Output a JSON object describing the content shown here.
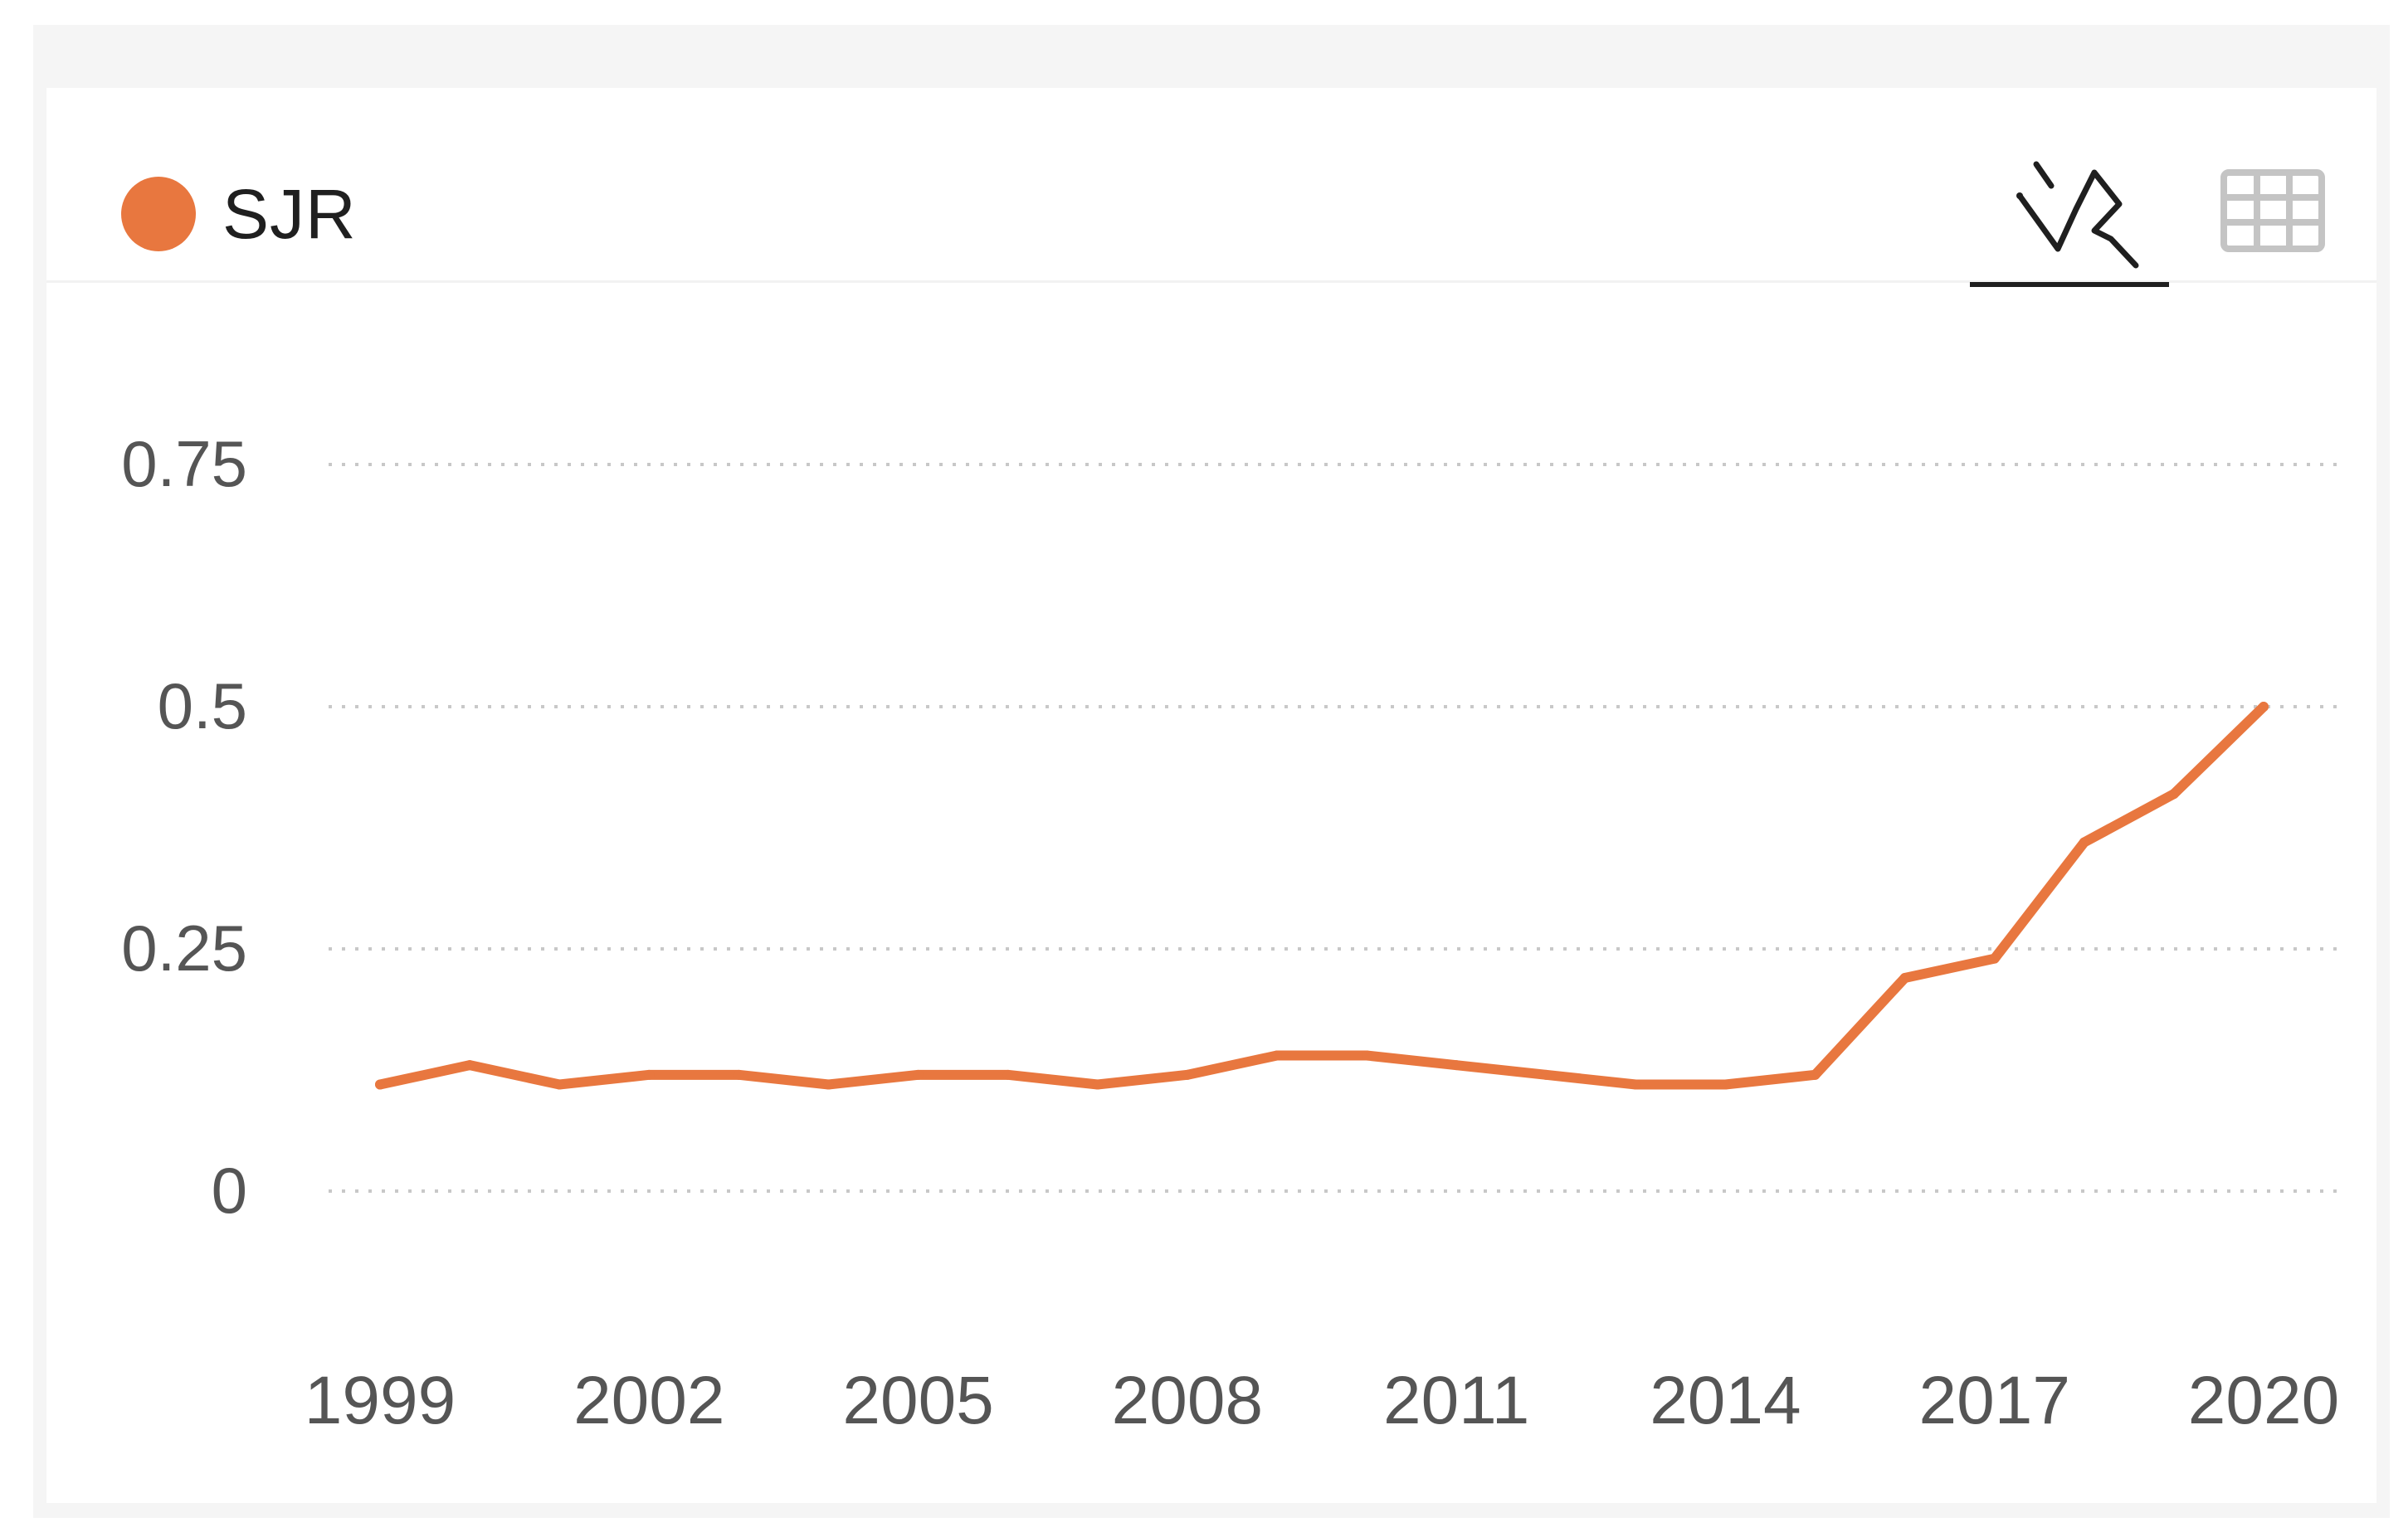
{
  "legend": {
    "label": "SJR",
    "color": "#e8773f"
  },
  "view_tabs": {
    "chart_icon": "line-chart-icon",
    "table_icon": "table-grid-icon",
    "active": "chart"
  },
  "chart_data": {
    "type": "line",
    "title": "",
    "xlabel": "",
    "ylabel": "",
    "x": [
      1999,
      2000,
      2001,
      2002,
      2003,
      2004,
      2005,
      2006,
      2007,
      2008,
      2009,
      2010,
      2011,
      2012,
      2013,
      2014,
      2015,
      2016,
      2017,
      2018,
      2019,
      2020
    ],
    "series": [
      {
        "name": "SJR",
        "color": "#e8773f",
        "values": [
          0.11,
          0.13,
          0.11,
          0.12,
          0.12,
          0.11,
          0.12,
          0.12,
          0.11,
          0.12,
          0.14,
          0.14,
          0.13,
          0.12,
          0.11,
          0.11,
          0.12,
          0.22,
          0.24,
          0.36,
          0.41,
          0.5
        ]
      }
    ],
    "ylim": [
      0,
      0.75
    ],
    "y_ticks": [
      "0",
      "0.25",
      "0.5",
      "0.75"
    ],
    "x_ticks": [
      "1999",
      "2002",
      "2005",
      "2008",
      "2011",
      "2014",
      "2017",
      "2020"
    ],
    "grid": "horizontal dotted",
    "legend": "top-left"
  }
}
